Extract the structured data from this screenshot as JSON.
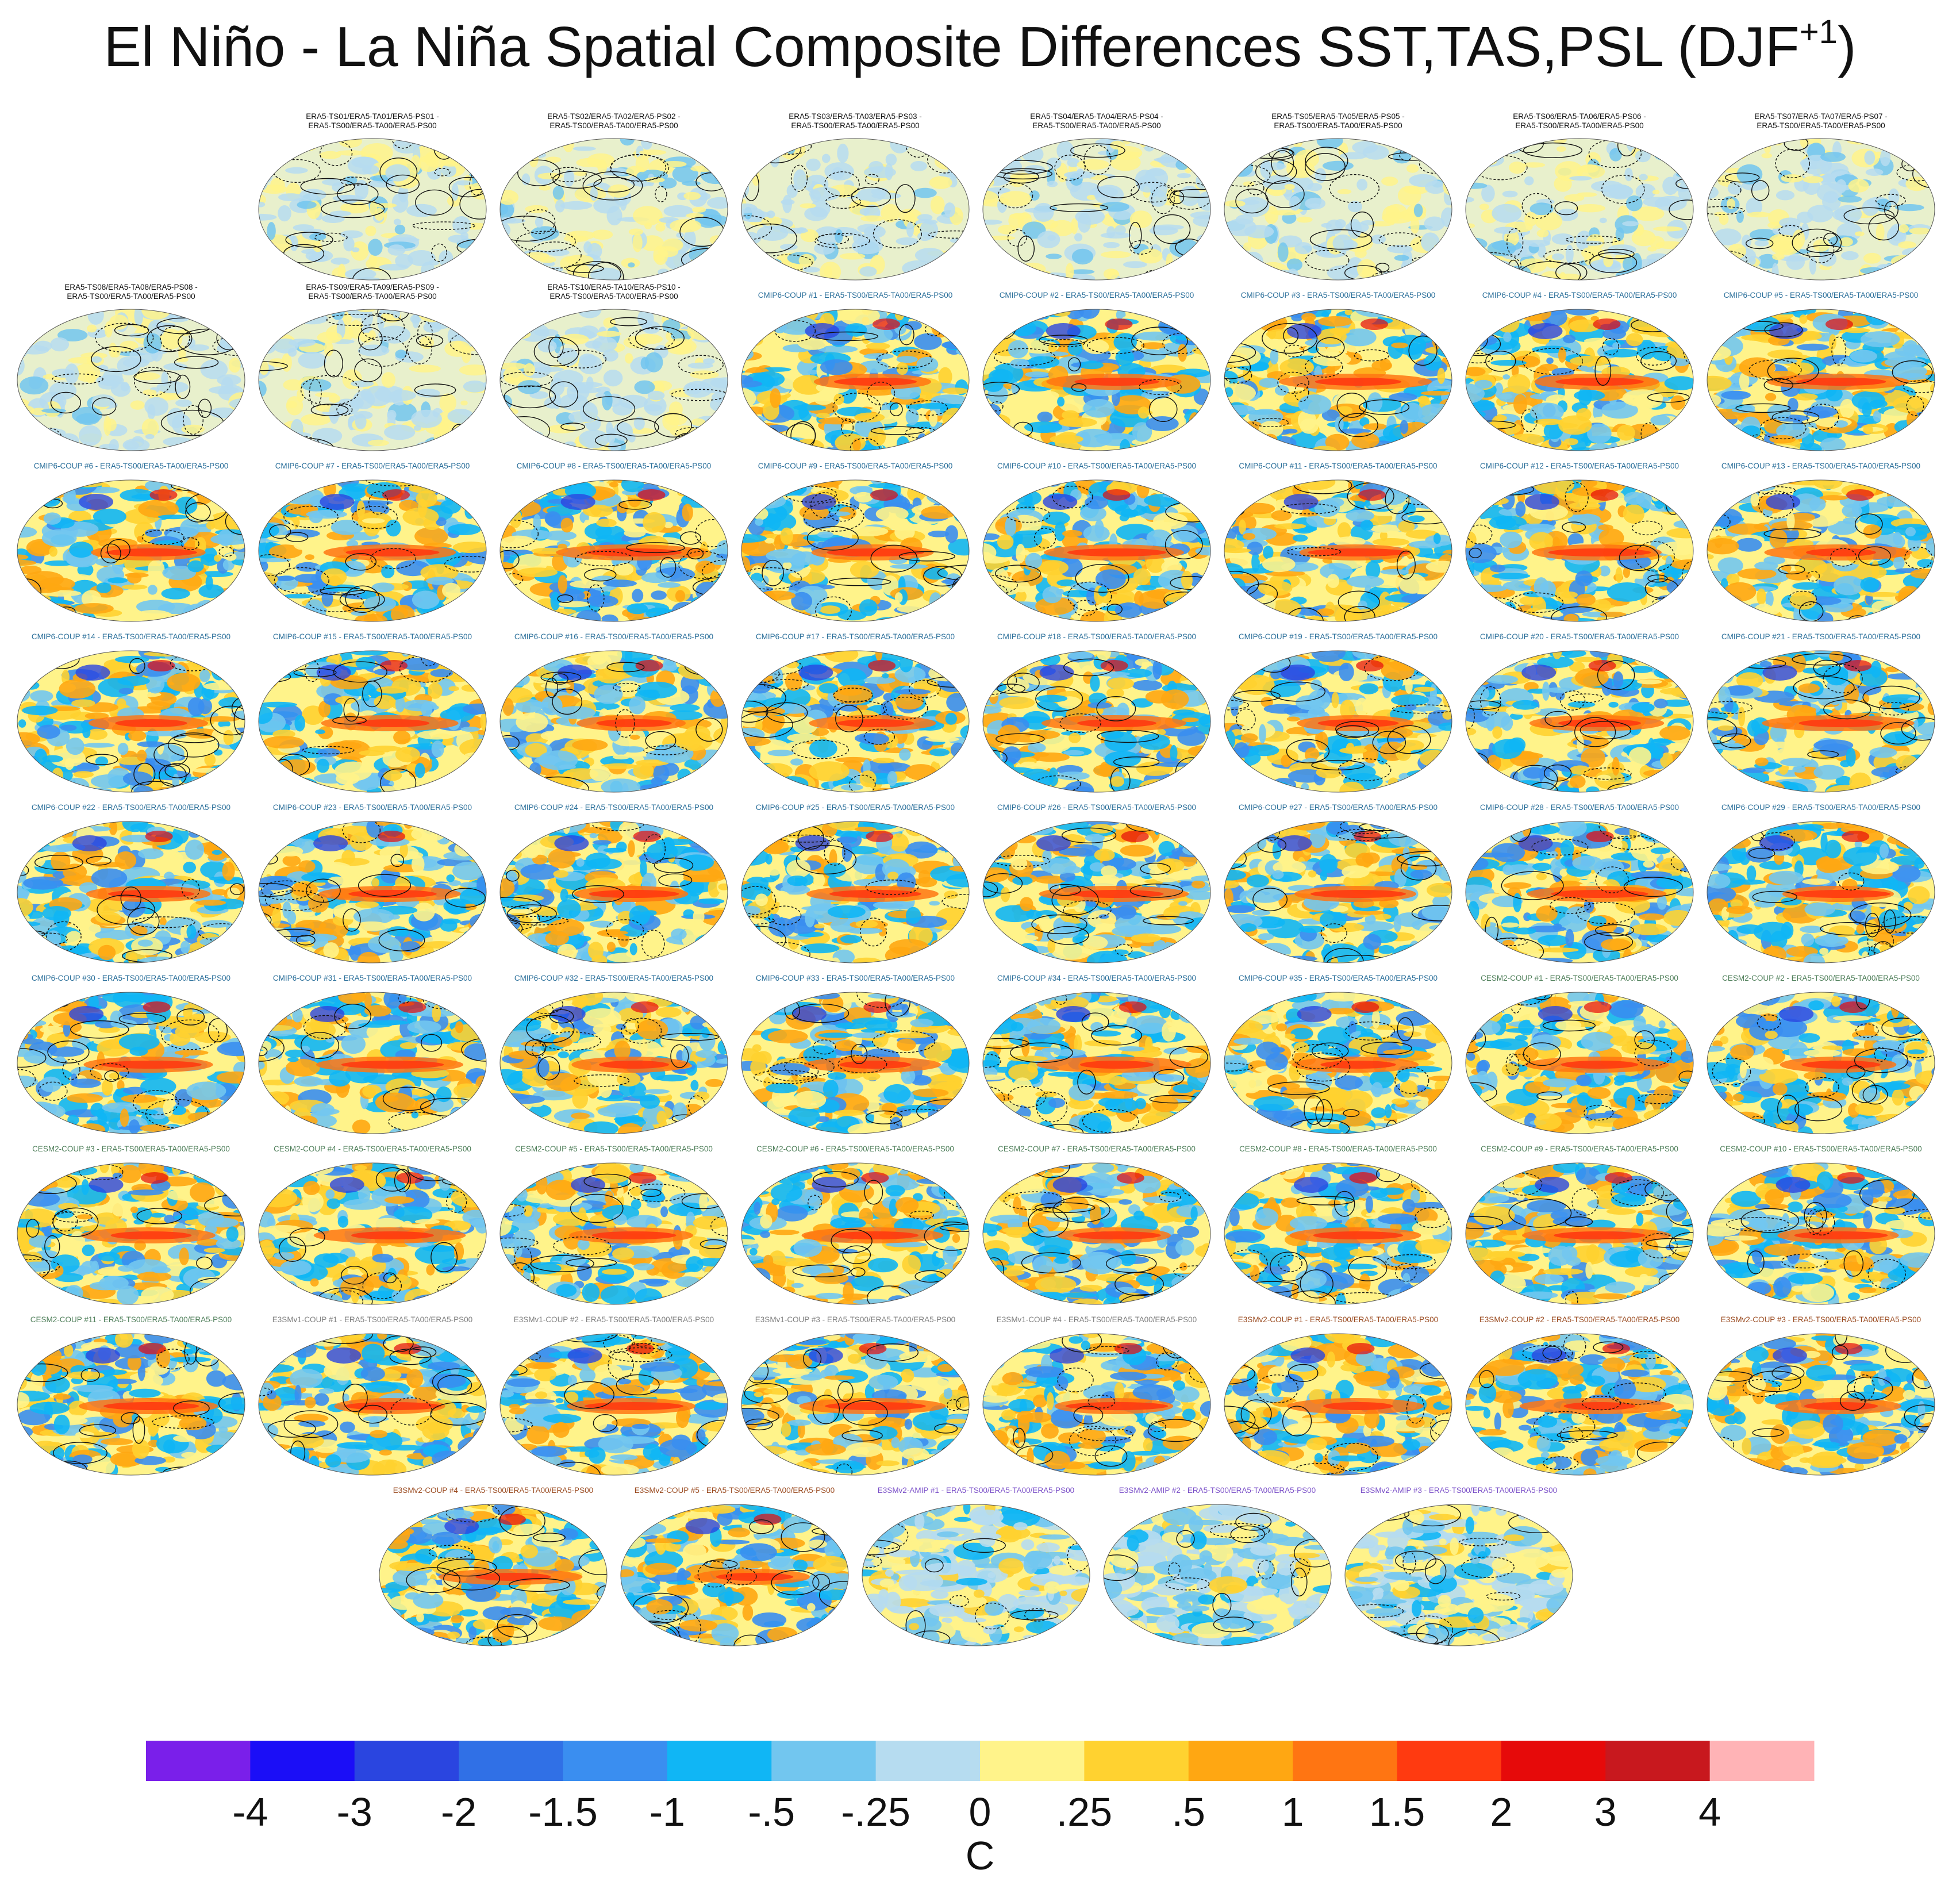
{
  "figure": {
    "title": "El Niño - La Niña Spatial Composite Differences SST,TAS,PSL (DJF",
    "title_superscript": "+1",
    "title_close": ")"
  },
  "chart_data": {
    "type": "heatmap",
    "description_kind": "grid of global map panels",
    "colorbar": {
      "unit": "C",
      "tick_labels": [
        "-4",
        "-3",
        "-2",
        "-1.5",
        "-1",
        "-.5",
        "-.25",
        "0",
        ".25",
        ".5",
        "1",
        "1.5",
        "2",
        "3",
        "4"
      ],
      "colors": [
        "#7a1fea",
        "#1b0ef7",
        "#2a45e0",
        "#3070e6",
        "#3a8ef0",
        "#10b6f5",
        "#72c6ef",
        "#b6dcf0",
        "#fff38a",
        "#ffd230",
        "#ffa712",
        "#ff7512",
        "#ff3a10",
        "#e60a0a",
        "#c8181e",
        "#ffb3b6"
      ]
    },
    "panel_rows": [
      {
        "row": 1,
        "offset_cols": 1,
        "panels": [
          {
            "title": "ERA5-TS01/ERA5-TA01/ERA5-PS01 -\nERA5-TS00/ERA5-TA00/ERA5-PS00",
            "group": "obs"
          },
          {
            "title": "ERA5-TS02/ERA5-TA02/ERA5-PS02 -\nERA5-TS00/ERA5-TA00/ERA5-PS00",
            "group": "obs"
          },
          {
            "title": "ERA5-TS03/ERA5-TA03/ERA5-PS03 -\nERA5-TS00/ERA5-TA00/ERA5-PS00",
            "group": "obs"
          },
          {
            "title": "ERA5-TS04/ERA5-TA04/ERA5-PS04 -\nERA5-TS00/ERA5-TA00/ERA5-PS00",
            "group": "obs"
          },
          {
            "title": "ERA5-TS05/ERA5-TA05/ERA5-PS05 -\nERA5-TS00/ERA5-TA00/ERA5-PS00",
            "group": "obs"
          },
          {
            "title": "ERA5-TS06/ERA5-TA06/ERA5-PS06 -\nERA5-TS00/ERA5-TA00/ERA5-PS00",
            "group": "obs"
          },
          {
            "title": "ERA5-TS07/ERA5-TA07/ERA5-PS07 -\nERA5-TS00/ERA5-TA00/ERA5-PS00",
            "group": "obs"
          }
        ]
      },
      {
        "row": 2,
        "offset_cols": 0,
        "panels": [
          {
            "title": "ERA5-TS08/ERA5-TA08/ERA5-PS08 -\nERA5-TS00/ERA5-TA00/ERA5-PS00",
            "group": "obs"
          },
          {
            "title": "ERA5-TS09/ERA5-TA09/ERA5-PS09 -\nERA5-TS00/ERA5-TA00/ERA5-PS00",
            "group": "obs"
          },
          {
            "title": "ERA5-TS10/ERA5-TA10/ERA5-PS10 -\nERA5-TS00/ERA5-TA00/ERA5-PS00",
            "group": "obs"
          },
          {
            "title": "CMIP6-COUP  #1 - ERA5-TS00/ERA5-TA00/ERA5-PS00",
            "group": "cmip6"
          },
          {
            "title": "CMIP6-COUP  #2 - ERA5-TS00/ERA5-TA00/ERA5-PS00",
            "group": "cmip6"
          },
          {
            "title": "CMIP6-COUP  #3 - ERA5-TS00/ERA5-TA00/ERA5-PS00",
            "group": "cmip6"
          },
          {
            "title": "CMIP6-COUP  #4 - ERA5-TS00/ERA5-TA00/ERA5-PS00",
            "group": "cmip6"
          },
          {
            "title": "CMIP6-COUP  #5 - ERA5-TS00/ERA5-TA00/ERA5-PS00",
            "group": "cmip6"
          }
        ]
      },
      {
        "row": 3,
        "offset_cols": 0,
        "panels": [
          {
            "title": "CMIP6-COUP  #6 - ERA5-TS00/ERA5-TA00/ERA5-PS00",
            "group": "cmip6"
          },
          {
            "title": "CMIP6-COUP  #7 - ERA5-TS00/ERA5-TA00/ERA5-PS00",
            "group": "cmip6"
          },
          {
            "title": "CMIP6-COUP  #8 - ERA5-TS00/ERA5-TA00/ERA5-PS00",
            "group": "cmip6"
          },
          {
            "title": "CMIP6-COUP  #9 - ERA5-TS00/ERA5-TA00/ERA5-PS00",
            "group": "cmip6"
          },
          {
            "title": "CMIP6-COUP  #10 - ERA5-TS00/ERA5-TA00/ERA5-PS00",
            "group": "cmip6"
          },
          {
            "title": "CMIP6-COUP  #11 - ERA5-TS00/ERA5-TA00/ERA5-PS00",
            "group": "cmip6"
          },
          {
            "title": "CMIP6-COUP  #12 - ERA5-TS00/ERA5-TA00/ERA5-PS00",
            "group": "cmip6"
          },
          {
            "title": "CMIP6-COUP  #13 - ERA5-TS00/ERA5-TA00/ERA5-PS00",
            "group": "cmip6"
          }
        ]
      },
      {
        "row": 4,
        "offset_cols": 0,
        "panels": [
          {
            "title": "CMIP6-COUP  #14 - ERA5-TS00/ERA5-TA00/ERA5-PS00",
            "group": "cmip6"
          },
          {
            "title": "CMIP6-COUP  #15 - ERA5-TS00/ERA5-TA00/ERA5-PS00",
            "group": "cmip6"
          },
          {
            "title": "CMIP6-COUP  #16 - ERA5-TS00/ERA5-TA00/ERA5-PS00",
            "group": "cmip6"
          },
          {
            "title": "CMIP6-COUP  #17 - ERA5-TS00/ERA5-TA00/ERA5-PS00",
            "group": "cmip6"
          },
          {
            "title": "CMIP6-COUP  #18 - ERA5-TS00/ERA5-TA00/ERA5-PS00",
            "group": "cmip6"
          },
          {
            "title": "CMIP6-COUP  #19 - ERA5-TS00/ERA5-TA00/ERA5-PS00",
            "group": "cmip6"
          },
          {
            "title": "CMIP6-COUP  #20 - ERA5-TS00/ERA5-TA00/ERA5-PS00",
            "group": "cmip6"
          },
          {
            "title": "CMIP6-COUP  #21 - ERA5-TS00/ERA5-TA00/ERA5-PS00",
            "group": "cmip6"
          }
        ]
      },
      {
        "row": 5,
        "offset_cols": 0,
        "panels": [
          {
            "title": "CMIP6-COUP  #22 - ERA5-TS00/ERA5-TA00/ERA5-PS00",
            "group": "cmip6"
          },
          {
            "title": "CMIP6-COUP  #23 - ERA5-TS00/ERA5-TA00/ERA5-PS00",
            "group": "cmip6"
          },
          {
            "title": "CMIP6-COUP  #24 - ERA5-TS00/ERA5-TA00/ERA5-PS00",
            "group": "cmip6"
          },
          {
            "title": "CMIP6-COUP  #25 - ERA5-TS00/ERA5-TA00/ERA5-PS00",
            "group": "cmip6"
          },
          {
            "title": "CMIP6-COUP  #26 - ERA5-TS00/ERA5-TA00/ERA5-PS00",
            "group": "cmip6"
          },
          {
            "title": "CMIP6-COUP  #27 - ERA5-TS00/ERA5-TA00/ERA5-PS00",
            "group": "cmip6"
          },
          {
            "title": "CMIP6-COUP  #28 - ERA5-TS00/ERA5-TA00/ERA5-PS00",
            "group": "cmip6"
          },
          {
            "title": "CMIP6-COUP  #29 - ERA5-TS00/ERA5-TA00/ERA5-PS00",
            "group": "cmip6"
          }
        ]
      },
      {
        "row": 6,
        "offset_cols": 0,
        "panels": [
          {
            "title": "CMIP6-COUP  #30 - ERA5-TS00/ERA5-TA00/ERA5-PS00",
            "group": "cmip6"
          },
          {
            "title": "CMIP6-COUP  #31 - ERA5-TS00/ERA5-TA00/ERA5-PS00",
            "group": "cmip6"
          },
          {
            "title": "CMIP6-COUP  #32 - ERA5-TS00/ERA5-TA00/ERA5-PS00",
            "group": "cmip6"
          },
          {
            "title": "CMIP6-COUP  #33 - ERA5-TS00/ERA5-TA00/ERA5-PS00",
            "group": "cmip6"
          },
          {
            "title": "CMIP6-COUP  #34 - ERA5-TS00/ERA5-TA00/ERA5-PS00",
            "group": "cmip6"
          },
          {
            "title": "CMIP6-COUP  #35 - ERA5-TS00/ERA5-TA00/ERA5-PS00",
            "group": "cmip6"
          },
          {
            "title": "CESM2-COUP  #1 - ERA5-TS00/ERA5-TA00/ERA5-PS00",
            "group": "cesm2"
          },
          {
            "title": "CESM2-COUP  #2 - ERA5-TS00/ERA5-TA00/ERA5-PS00",
            "group": "cesm2"
          }
        ]
      },
      {
        "row": 7,
        "offset_cols": 0,
        "panels": [
          {
            "title": "CESM2-COUP  #3 - ERA5-TS00/ERA5-TA00/ERA5-PS00",
            "group": "cesm2"
          },
          {
            "title": "CESM2-COUP  #4 - ERA5-TS00/ERA5-TA00/ERA5-PS00",
            "group": "cesm2"
          },
          {
            "title": "CESM2-COUP  #5 - ERA5-TS00/ERA5-TA00/ERA5-PS00",
            "group": "cesm2"
          },
          {
            "title": "CESM2-COUP  #6 - ERA5-TS00/ERA5-TA00/ERA5-PS00",
            "group": "cesm2"
          },
          {
            "title": "CESM2-COUP  #7 - ERA5-TS00/ERA5-TA00/ERA5-PS00",
            "group": "cesm2"
          },
          {
            "title": "CESM2-COUP  #8 - ERA5-TS00/ERA5-TA00/ERA5-PS00",
            "group": "cesm2"
          },
          {
            "title": "CESM2-COUP  #9 - ERA5-TS00/ERA5-TA00/ERA5-PS00",
            "group": "cesm2"
          },
          {
            "title": "CESM2-COUP  #10 - ERA5-TS00/ERA5-TA00/ERA5-PS00",
            "group": "cesm2"
          }
        ]
      },
      {
        "row": 8,
        "offset_cols": 0,
        "panels": [
          {
            "title": "CESM2-COUP  #11 - ERA5-TS00/ERA5-TA00/ERA5-PS00",
            "group": "cesm2"
          },
          {
            "title": "E3SMv1-COUP #1 - ERA5-TS00/ERA5-TA00/ERA5-PS00",
            "group": "e3smv1"
          },
          {
            "title": "E3SMv1-COUP #2 - ERA5-TS00/ERA5-TA00/ERA5-PS00",
            "group": "e3smv1"
          },
          {
            "title": "E3SMv1-COUP #3 - ERA5-TS00/ERA5-TA00/ERA5-PS00",
            "group": "e3smv1"
          },
          {
            "title": "E3SMv1-COUP #4 - ERA5-TS00/ERA5-TA00/ERA5-PS00",
            "group": "e3smv1"
          },
          {
            "title": "E3SMv2-COUP #1 - ERA5-TS00/ERA5-TA00/ERA5-PS00",
            "group": "e3smv2"
          },
          {
            "title": "E3SMv2-COUP #2 - ERA5-TS00/ERA5-TA00/ERA5-PS00",
            "group": "e3smv2"
          },
          {
            "title": "E3SMv2-COUP #3 - ERA5-TS00/ERA5-TA00/ERA5-PS00",
            "group": "e3smv2"
          }
        ]
      },
      {
        "row": 9,
        "offset_cols": 1.5,
        "panels": [
          {
            "title": "E3SMv2-COUP #4 - ERA5-TS00/ERA5-TA00/ERA5-PS00",
            "group": "e3smv2"
          },
          {
            "title": "E3SMv2-COUP #5 - ERA5-TS00/ERA5-TA00/ERA5-PS00",
            "group": "e3smv2"
          },
          {
            "title": "E3SMv2-AMIP #1 - ERA5-TS00/ERA5-TA00/ERA5-PS00",
            "group": "amip"
          },
          {
            "title": "E3SMv2-AMIP #2 - ERA5-TS00/ERA5-TA00/ERA5-PS00",
            "group": "amip"
          },
          {
            "title": "E3SMv2-AMIP #3 - ERA5-TS00/ERA5-TA00/ERA5-PS00",
            "group": "amip"
          }
        ]
      }
    ],
    "group_title_colors": {
      "obs": "#111111",
      "cmip6": "#2a6f9a",
      "cesm2": "#4f7f5a",
      "e3smv1": "#7f7f7f",
      "e3smv2": "#9a4a1f",
      "amip": "#7a4fc8"
    }
  }
}
